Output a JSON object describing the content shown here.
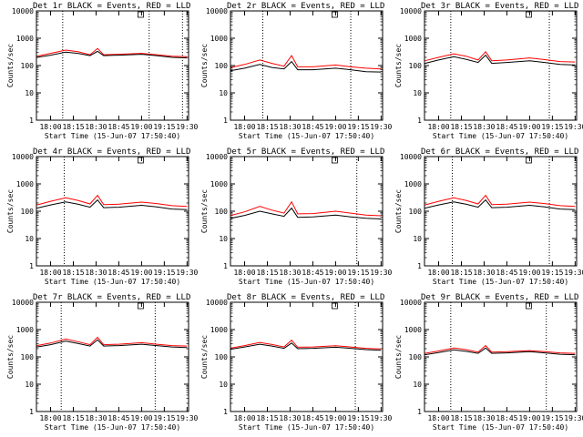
{
  "chart_data": [
    {
      "type": "line",
      "title": "Det 1r BLACK = Events, RED = LLD",
      "xlabel": "Start Time (15-Jun-07 17:50:40)",
      "ylabel": "Counts/sec",
      "yscale": "log",
      "ylim": [
        1,
        10000
      ],
      "x_ticks": [
        "18:00",
        "18:15",
        "18:30",
        "18:45",
        "19:00",
        "19:15",
        "19:30"
      ],
      "y_ticks": [
        "1",
        "10",
        "100",
        "1000",
        "10000"
      ],
      "dotted_markers": [
        "18:08",
        "19:05",
        "19:27"
      ],
      "series": [
        {
          "color": "#000000",
          "x": [
            "17:51",
            "18:00",
            "18:10",
            "18:18",
            "18:26",
            "18:31",
            "18:35",
            "18:45",
            "19:00",
            "19:10",
            "19:20",
            "19:30"
          ],
          "values": [
            200,
            240,
            310,
            280,
            230,
            330,
            230,
            240,
            260,
            230,
            200,
            190
          ]
        },
        {
          "color": "#ff0000",
          "x": [
            "17:51",
            "18:00",
            "18:10",
            "18:18",
            "18:26",
            "18:31",
            "18:35",
            "18:45",
            "19:00",
            "19:10",
            "19:20",
            "19:30"
          ],
          "values": [
            220,
            280,
            370,
            320,
            250,
            420,
            250,
            260,
            280,
            250,
            220,
            210
          ]
        }
      ]
    },
    {
      "type": "line",
      "title": "Det 2r BLACK = Events, RED = LLD",
      "xlabel": "Start Time (15-Jun-07 17:50:40)",
      "ylabel": "Counts/sec",
      "yscale": "log",
      "ylim": [
        1,
        10000
      ],
      "x_ticks": [
        "18:00",
        "18:15",
        "18:30",
        "18:45",
        "19:00",
        "19:15",
        "19:30"
      ],
      "y_ticks": [
        "1",
        "10",
        "100",
        "1000",
        "10000"
      ],
      "dotted_markers": [
        "18:12",
        "19:10"
      ],
      "series": [
        {
          "color": "#000000",
          "x": [
            "17:51",
            "18:00",
            "18:10",
            "18:18",
            "18:26",
            "18:31",
            "18:35",
            "18:45",
            "19:00",
            "19:10",
            "19:20",
            "19:30"
          ],
          "values": [
            65,
            80,
            110,
            85,
            75,
            140,
            70,
            70,
            80,
            70,
            60,
            58
          ]
        },
        {
          "color": "#ff0000",
          "x": [
            "17:51",
            "18:00",
            "18:10",
            "18:18",
            "18:26",
            "18:31",
            "18:35",
            "18:45",
            "19:00",
            "19:10",
            "19:20",
            "19:30"
          ],
          "values": [
            85,
            110,
            160,
            120,
            95,
            230,
            90,
            90,
            105,
            90,
            80,
            75
          ]
        }
      ]
    },
    {
      "type": "line",
      "title": "Det 3r BLACK = Events, RED = LLD",
      "xlabel": "Start Time (15-Jun-07 17:50:40)",
      "ylabel": "Counts/sec",
      "yscale": "log",
      "ylim": [
        1,
        10000
      ],
      "x_ticks": [
        "18:00",
        "18:15",
        "18:30",
        "18:45",
        "19:00",
        "19:15",
        "19:30"
      ],
      "y_ticks": [
        "1",
        "10",
        "100",
        "1000",
        "10000"
      ],
      "dotted_markers": [
        "18:08",
        "19:13"
      ],
      "series": [
        {
          "color": "#000000",
          "x": [
            "17:51",
            "18:00",
            "18:10",
            "18:18",
            "18:26",
            "18:31",
            "18:35",
            "18:45",
            "19:00",
            "19:10",
            "19:20",
            "19:30"
          ],
          "values": [
            120,
            160,
            210,
            170,
            130,
            240,
            120,
            130,
            150,
            130,
            110,
            105
          ]
        },
        {
          "color": "#ff0000",
          "x": [
            "17:51",
            "18:00",
            "18:10",
            "18:18",
            "18:26",
            "18:31",
            "18:35",
            "18:45",
            "19:00",
            "19:10",
            "19:20",
            "19:30"
          ],
          "values": [
            150,
            200,
            270,
            220,
            160,
            320,
            150,
            160,
            190,
            165,
            140,
            135
          ]
        }
      ]
    },
    {
      "type": "line",
      "title": "Det 4r BLACK = Events, RED = LLD",
      "xlabel": "Start Time (15-Jun-07 17:50:40)",
      "ylabel": "Counts/sec",
      "yscale": "log",
      "ylim": [
        1,
        10000
      ],
      "x_ticks": [
        "18:00",
        "18:15",
        "18:30",
        "18:45",
        "19:00",
        "19:15",
        "19:30"
      ],
      "y_ticks": [
        "1",
        "10",
        "100",
        "1000",
        "10000"
      ],
      "dotted_markers": [
        "18:09"
      ],
      "series": [
        {
          "color": "#000000",
          "x": [
            "17:51",
            "18:00",
            "18:10",
            "18:18",
            "18:26",
            "18:31",
            "18:35",
            "18:45",
            "19:00",
            "19:10",
            "19:20",
            "19:30"
          ],
          "values": [
            130,
            170,
            220,
            180,
            140,
            260,
            135,
            140,
            165,
            145,
            120,
            115
          ]
        },
        {
          "color": "#ff0000",
          "x": [
            "17:51",
            "18:00",
            "18:10",
            "18:18",
            "18:26",
            "18:31",
            "18:35",
            "18:45",
            "19:00",
            "19:10",
            "19:20",
            "19:30"
          ],
          "values": [
            170,
            230,
            310,
            250,
            185,
            380,
            175,
            180,
            215,
            190,
            160,
            150
          ]
        }
      ]
    },
    {
      "type": "line",
      "title": "Det 5r BLACK = Events, RED = LLD",
      "xlabel": "Start Time (15-Jun-07 17:50:40)",
      "ylabel": "Counts/sec",
      "yscale": "log",
      "ylim": [
        1,
        10000
      ],
      "x_ticks": [
        "18:00",
        "18:15",
        "18:30",
        "18:45",
        "19:00",
        "19:15",
        "19:30"
      ],
      "y_ticks": [
        "1",
        "10",
        "100",
        "1000",
        "10000"
      ],
      "dotted_markers": [
        "19:14"
      ],
      "series": [
        {
          "color": "#000000",
          "x": [
            "17:51",
            "18:00",
            "18:10",
            "18:18",
            "18:26",
            "18:31",
            "18:35",
            "18:45",
            "19:00",
            "19:10",
            "19:20",
            "19:30"
          ],
          "values": [
            55,
            70,
            100,
            80,
            65,
            130,
            60,
            62,
            72,
            62,
            55,
            52
          ]
        },
        {
          "color": "#ff0000",
          "x": [
            "17:51",
            "18:00",
            "18:10",
            "18:18",
            "18:26",
            "18:31",
            "18:35",
            "18:45",
            "19:00",
            "19:10",
            "19:20",
            "19:30"
          ],
          "values": [
            70,
            95,
            150,
            110,
            85,
            220,
            80,
            82,
            100,
            85,
            72,
            68
          ]
        }
      ]
    },
    {
      "type": "line",
      "title": "Det 6r BLACK = Events, RED = LLD",
      "xlabel": "Start Time (15-Jun-07 17:50:40)",
      "ylabel": "Counts/sec",
      "yscale": "log",
      "ylim": [
        1,
        10000
      ],
      "x_ticks": [
        "18:00",
        "18:15",
        "18:30",
        "18:45",
        "19:00",
        "19:15",
        "19:30"
      ],
      "y_ticks": [
        "1",
        "10",
        "100",
        "1000",
        "10000"
      ],
      "dotted_markers": [
        "18:09",
        "19:13"
      ],
      "series": [
        {
          "color": "#000000",
          "x": [
            "17:51",
            "18:00",
            "18:10",
            "18:18",
            "18:26",
            "18:31",
            "18:35",
            "18:45",
            "19:00",
            "19:10",
            "19:20",
            "19:30"
          ],
          "values": [
            130,
            170,
            220,
            180,
            140,
            260,
            135,
            140,
            165,
            145,
            120,
            115
          ]
        },
        {
          "color": "#ff0000",
          "x": [
            "17:51",
            "18:00",
            "18:10",
            "18:18",
            "18:26",
            "18:31",
            "18:35",
            "18:45",
            "19:00",
            "19:10",
            "19:20",
            "19:30"
          ],
          "values": [
            170,
            230,
            310,
            250,
            185,
            380,
            175,
            180,
            215,
            190,
            160,
            150
          ]
        }
      ]
    },
    {
      "type": "line",
      "title": "Det 7r BLACK = Events, RED = LLD",
      "xlabel": "Start Time (15-Jun-07 17:50:40)",
      "ylabel": "Counts/sec",
      "yscale": "log",
      "ylim": [
        1,
        10000
      ],
      "x_ticks": [
        "18:00",
        "18:15",
        "18:30",
        "18:45",
        "19:00",
        "19:15",
        "19:30"
      ],
      "y_ticks": [
        "1",
        "10",
        "100",
        "1000",
        "10000"
      ],
      "dotted_markers": [
        "18:07",
        "19:09"
      ],
      "series": [
        {
          "color": "#000000",
          "x": [
            "17:51",
            "18:00",
            "18:10",
            "18:18",
            "18:26",
            "18:31",
            "18:35",
            "18:45",
            "19:00",
            "19:10",
            "19:20",
            "19:30"
          ],
          "values": [
            230,
            280,
            380,
            310,
            250,
            420,
            250,
            260,
            290,
            260,
            230,
            220
          ]
        },
        {
          "color": "#ff0000",
          "x": [
            "17:51",
            "18:00",
            "18:10",
            "18:18",
            "18:26",
            "18:31",
            "18:35",
            "18:45",
            "19:00",
            "19:10",
            "19:20",
            "19:30"
          ],
          "values": [
            260,
            320,
            450,
            360,
            280,
            520,
            280,
            290,
            330,
            290,
            260,
            250
          ]
        }
      ]
    },
    {
      "type": "line",
      "title": "Det 8r BLACK = Events, RED = LLD",
      "xlabel": "Start Time (15-Jun-07 17:50:40)",
      "ylabel": "Counts/sec",
      "yscale": "log",
      "ylim": [
        1,
        10000
      ],
      "x_ticks": [
        "18:00",
        "18:15",
        "18:30",
        "18:45",
        "19:00",
        "19:15",
        "19:30"
      ],
      "y_ticks": [
        "1",
        "10",
        "100",
        "1000",
        "10000"
      ],
      "dotted_markers": [
        "19:13"
      ],
      "series": [
        {
          "color": "#000000",
          "x": [
            "17:51",
            "18:00",
            "18:10",
            "18:18",
            "18:26",
            "18:31",
            "18:35",
            "18:45",
            "19:00",
            "19:10",
            "19:20",
            "19:30"
          ],
          "values": [
            190,
            230,
            290,
            250,
            205,
            320,
            200,
            205,
            225,
            205,
            185,
            175
          ]
        },
        {
          "color": "#ff0000",
          "x": [
            "17:51",
            "18:00",
            "18:10",
            "18:18",
            "18:26",
            "18:31",
            "18:35",
            "18:45",
            "19:00",
            "19:10",
            "19:20",
            "19:30"
          ],
          "values": [
            210,
            260,
            340,
            285,
            230,
            410,
            225,
            230,
            255,
            230,
            205,
            195
          ]
        }
      ]
    },
    {
      "type": "line",
      "title": "Det 9r BLACK = Events, RED = LLD",
      "xlabel": "Start Time (15-Jun-07 17:50:40)",
      "ylabel": "Counts/sec",
      "yscale": "log",
      "ylim": [
        1,
        10000
      ],
      "x_ticks": [
        "18:00",
        "18:15",
        "18:30",
        "18:45",
        "19:00",
        "19:15",
        "19:30"
      ],
      "y_ticks": [
        "1",
        "10",
        "100",
        "1000",
        "10000"
      ],
      "dotted_markers": [
        "18:08",
        "19:11"
      ],
      "series": [
        {
          "color": "#000000",
          "x": [
            "17:51",
            "18:00",
            "18:10",
            "18:18",
            "18:26",
            "18:31",
            "18:35",
            "18:45",
            "19:00",
            "19:10",
            "19:20",
            "19:30"
          ],
          "values": [
            120,
            145,
            180,
            160,
            135,
            210,
            135,
            140,
            155,
            140,
            125,
            120
          ]
        },
        {
          "color": "#ff0000",
          "x": [
            "17:51",
            "18:00",
            "18:10",
            "18:18",
            "18:26",
            "18:31",
            "18:35",
            "18:45",
            "19:00",
            "19:10",
            "19:20",
            "19:30"
          ],
          "values": [
            135,
            165,
            210,
            185,
            150,
            260,
            150,
            155,
            170,
            155,
            140,
            135
          ]
        }
      ]
    }
  ]
}
